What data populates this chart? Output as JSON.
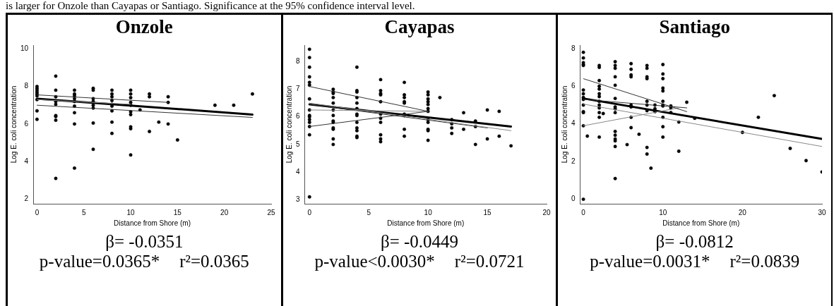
{
  "chart_data": [
    {
      "type": "scatter",
      "title": "Onzole",
      "xlabel": "Distance from Shore (m)",
      "ylabel": "Log E. coli concentration",
      "xlim": [
        -0.4,
        25
      ],
      "ylim": [
        1.75,
        10.2
      ],
      "xticks": [
        0,
        5,
        10,
        15,
        20,
        25
      ],
      "yticks": [
        2,
        4,
        6,
        8,
        10
      ],
      "grid": false,
      "legend": false,
      "marker": "circle",
      "annotations": [
        "β= -0.0351",
        "p-value=0.0365*",
        "r²=0.0365",
        "is larger for Onzole than Cayapas or Santiago.  Significance at the 95% confidence interval level."
      ],
      "series": [
        {
          "color": "#000000",
          "x": [
            0,
            0,
            0,
            0,
            0,
            0,
            0,
            0,
            0,
            2,
            2,
            2,
            2,
            2,
            2,
            2,
            2,
            2,
            4,
            4,
            4,
            4,
            4,
            4,
            4,
            4,
            4,
            6,
            6,
            6,
            6,
            6,
            6,
            6,
            6,
            8,
            8,
            8,
            8,
            8,
            8,
            8,
            8,
            8,
            10,
            10,
            10,
            10,
            10,
            10,
            10,
            10,
            10,
            10,
            11,
            12,
            12,
            12,
            13,
            14,
            14,
            14,
            15,
            19,
            21,
            23
          ],
          "values": [
            8.0,
            7.9,
            7.8,
            7.7,
            7.6,
            7.5,
            7.3,
            6.7,
            6.25,
            8.55,
            7.8,
            7.45,
            7.2,
            7.05,
            6.45,
            6.4,
            6.2,
            3.1,
            7.8,
            7.6,
            7.5,
            7.35,
            7.2,
            6.95,
            6.6,
            6.0,
            3.65,
            7.9,
            7.8,
            7.35,
            7.2,
            7.0,
            6.85,
            6.05,
            4.65,
            7.8,
            7.6,
            7.45,
            7.25,
            7.05,
            6.95,
            6.7,
            6.1,
            5.5,
            7.8,
            7.6,
            7.4,
            7.15,
            7.0,
            6.65,
            6.5,
            5.85,
            5.75,
            4.35,
            6.75,
            7.6,
            7.45,
            5.6,
            6.1,
            7.45,
            7.15,
            6.0,
            5.15,
            7.0,
            7.0,
            7.6
          ]
        },
        {
          "type": "line",
          "marker": "none",
          "color": "#000000",
          "x": [
            0,
            23
          ],
          "values": [
            7.35,
            6.5
          ]
        },
        {
          "type": "line",
          "marker": "none",
          "color": "#333333",
          "x": [
            0,
            14
          ],
          "values": [
            7.55,
            7.15
          ]
        },
        {
          "type": "line",
          "marker": "none",
          "color": "#333333",
          "x": [
            0,
            23
          ],
          "values": [
            7.0,
            6.35
          ]
        },
        {
          "type": "line",
          "marker": "none",
          "color": "#888888",
          "x": [
            0,
            10
          ],
          "values": [
            7.3,
            7.05
          ]
        }
      ]
    },
    {
      "type": "scatter",
      "title": "Cayapas",
      "xlabel": "Distance from Shore (m)",
      "ylabel": "Log E. coli concentration",
      "xlim": [
        -0.4,
        20
      ],
      "ylim": [
        2.85,
        8.6
      ],
      "xticks": [
        0,
        5,
        10,
        15,
        20
      ],
      "yticks": [
        3,
        4,
        5,
        6,
        7,
        8
      ],
      "grid": false,
      "legend": false,
      "marker": "circle",
      "annotations": [
        "β= -0.0449",
        "p-value<0.0030*",
        "r²=0.0721"
      ],
      "series": [
        {
          "color": "#000000",
          "x": [
            0,
            0,
            0,
            0,
            0,
            0,
            0,
            0,
            0,
            0,
            0,
            0,
            0,
            0,
            0,
            2,
            2,
            2,
            2,
            2,
            2,
            2,
            2,
            2,
            2,
            2,
            2,
            2,
            4,
            4,
            4,
            4,
            4,
            4,
            4,
            4,
            4,
            4,
            4,
            4,
            4,
            6,
            6,
            6,
            6,
            6,
            6,
            6,
            6,
            6,
            6,
            6,
            8,
            8,
            8,
            8,
            8,
            8,
            8,
            8,
            8,
            10,
            10,
            10,
            10,
            10,
            10,
            10,
            10,
            10,
            10,
            10,
            10,
            11,
            12,
            12,
            12,
            12,
            13,
            13,
            14,
            14,
            14,
            15,
            15,
            16,
            16,
            17
          ],
          "values": [
            8.45,
            8.15,
            7.8,
            7.45,
            7.25,
            7.15,
            6.65,
            6.25,
            6.05,
            6.0,
            5.9,
            5.8,
            5.65,
            5.35,
            3.1,
            7.0,
            6.9,
            6.85,
            6.7,
            6.5,
            6.25,
            6.05,
            5.85,
            5.8,
            5.6,
            5.55,
            5.2,
            5.0,
            7.8,
            6.95,
            6.9,
            6.7,
            6.5,
            6.3,
            6.1,
            6.05,
            5.8,
            5.6,
            5.5,
            5.3,
            5.25,
            7.35,
            6.95,
            6.85,
            6.8,
            6.55,
            6.1,
            5.95,
            5.8,
            5.35,
            5.2,
            5.1,
            7.25,
            6.8,
            6.7,
            6.55,
            6.5,
            6.1,
            6.05,
            5.55,
            5.3,
            6.9,
            6.8,
            6.65,
            6.55,
            6.45,
            6.3,
            6.2,
            5.9,
            5.8,
            5.55,
            5.5,
            5.15,
            6.7,
            5.9,
            5.75,
            5.6,
            5.4,
            6.15,
            5.55,
            5.85,
            5.65,
            5.0,
            6.25,
            5.2,
            6.2,
            5.3,
            4.95
          ]
        },
        {
          "type": "line",
          "marker": "none",
          "color": "#000000",
          "x": [
            0,
            17
          ],
          "values": [
            6.45,
            5.65
          ]
        },
        {
          "type": "line",
          "marker": "none",
          "color": "#333333",
          "x": [
            0,
            10
          ],
          "values": [
            7.1,
            6.2
          ]
        },
        {
          "type": "line",
          "marker": "none",
          "color": "#333333",
          "x": [
            0,
            10
          ],
          "values": [
            5.65,
            6.2
          ]
        },
        {
          "type": "line",
          "marker": "none",
          "color": "#888888",
          "x": [
            0,
            10
          ],
          "values": [
            6.25,
            6.2
          ]
        },
        {
          "type": "line",
          "marker": "none",
          "color": "#888888",
          "x": [
            0,
            17
          ],
          "values": [
            6.5,
            5.5
          ]
        },
        {
          "type": "line",
          "marker": "none",
          "color": "#333333",
          "x": [
            0,
            15
          ],
          "values": [
            6.45,
            5.6
          ]
        }
      ]
    },
    {
      "type": "scatter",
      "title": "Santiago",
      "xlabel": "Distance from Shore (m)",
      "ylabel": "Log E. coli concentration",
      "xlim": [
        -0.4,
        30
      ],
      "ylim": [
        -0.24,
        8.18
      ],
      "xticks": [
        0,
        10,
        20,
        30
      ],
      "yticks": [
        0,
        2,
        4,
        6,
        8
      ],
      "grid": false,
      "legend": false,
      "marker": "circle",
      "annotations": [
        "β= -0.0812",
        "p-value=0.0031*",
        "r²=0.0839"
      ],
      "series": [
        {
          "color": "#000000",
          "x": [
            0,
            0,
            0,
            0,
            0,
            0,
            0,
            0,
            0,
            0,
            0,
            0,
            0,
            0,
            0.5,
            2,
            2,
            2,
            2,
            2,
            2,
            2,
            2,
            2,
            2,
            2,
            2,
            2,
            2.5,
            4,
            4,
            4,
            4,
            4,
            4,
            4,
            4,
            4,
            4,
            4,
            4,
            4,
            4,
            4,
            5.5,
            6,
            6,
            6,
            6,
            6,
            6,
            6,
            6,
            7,
            8,
            8,
            8,
            8,
            8,
            8,
            8,
            8,
            8,
            8.5,
            9,
            9,
            9,
            10,
            10,
            10,
            10,
            10,
            10,
            10,
            10,
            10,
            10,
            10,
            11,
            11,
            11,
            12,
            12,
            13,
            14,
            20,
            22,
            24,
            26,
            28,
            30
          ],
          "values": [
            7.8,
            7.5,
            7.25,
            7.15,
            7.1,
            5.8,
            5.6,
            5.4,
            5.3,
            5.0,
            4.65,
            4.6,
            3.9,
            0.0,
            3.35,
            7.1,
            7.0,
            6.3,
            6.0,
            5.85,
            5.6,
            5.45,
            5.2,
            5.0,
            4.85,
            4.6,
            4.35,
            3.3,
            4.55,
            7.3,
            7.1,
            6.95,
            6.5,
            6.05,
            5.35,
            4.9,
            4.8,
            4.6,
            3.6,
            3.4,
            3.2,
            3.1,
            2.8,
            1.1,
            2.9,
            7.2,
            6.9,
            6.6,
            6.5,
            5.0,
            4.9,
            4.35,
            3.8,
            3.45,
            7.1,
            6.95,
            6.5,
            6.4,
            5.2,
            5.0,
            4.7,
            2.75,
            2.4,
            1.65,
            5.0,
            4.8,
            4.65,
            7.15,
            6.65,
            6.4,
            5.9,
            5.75,
            5.2,
            5.0,
            4.95,
            4.35,
            3.85,
            3.3,
            4.95,
            4.85,
            4.6,
            4.1,
            2.55,
            5.15,
            4.3,
            3.55,
            4.35,
            5.5,
            2.7,
            2.05,
            1.45
          ]
        },
        {
          "type": "line",
          "marker": "none",
          "color": "#000000",
          "x": [
            0,
            30
          ],
          "values": [
            5.35,
            3.2
          ]
        },
        {
          "type": "line",
          "marker": "none",
          "color": "#333333",
          "x": [
            0,
            13
          ],
          "values": [
            6.4,
            4.65
          ]
        },
        {
          "type": "line",
          "marker": "none",
          "color": "#888888",
          "x": [
            0,
            12
          ],
          "values": [
            3.9,
            4.85
          ]
        },
        {
          "type": "line",
          "marker": "none",
          "color": "#333333",
          "x": [
            0,
            13
          ],
          "values": [
            5.3,
            4.85
          ]
        },
        {
          "type": "line",
          "marker": "none",
          "color": "#888888",
          "x": [
            0,
            30
          ],
          "values": [
            5.05,
            2.8
          ]
        }
      ]
    }
  ]
}
